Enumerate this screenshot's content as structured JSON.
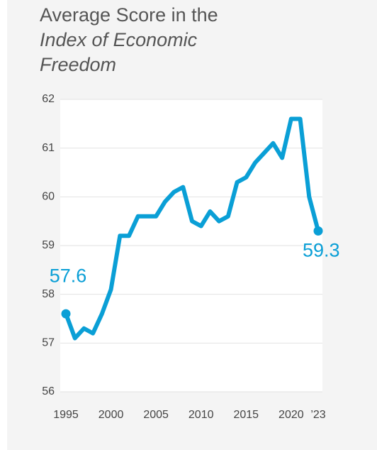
{
  "chart_data": {
    "type": "line",
    "title": "Average Score in the",
    "subtitle": "Index of Economic Freedom",
    "x": [
      1995,
      1996,
      1997,
      1998,
      1999,
      2000,
      2001,
      2002,
      2003,
      2004,
      2005,
      2006,
      2007,
      2008,
      2009,
      2010,
      2011,
      2012,
      2013,
      2014,
      2015,
      2016,
      2017,
      2018,
      2019,
      2020,
      2021,
      2022,
      2023
    ],
    "values": [
      57.6,
      57.1,
      57.3,
      57.2,
      57.6,
      58.1,
      59.2,
      59.2,
      59.6,
      59.6,
      59.6,
      59.9,
      60.1,
      60.2,
      59.5,
      59.4,
      59.7,
      59.5,
      59.6,
      60.3,
      60.4,
      60.7,
      60.9,
      61.1,
      60.8,
      61.6,
      61.6,
      60.0,
      59.3
    ],
    "color": "#0a9fd6",
    "xlim": [
      1995,
      2023
    ],
    "xticks": [
      1995,
      2000,
      2005,
      2010,
      2015,
      2020,
      {
        "value": 2023,
        "label": "’23"
      }
    ],
    "ylim": [
      56,
      62
    ],
    "yticks": [
      56,
      57,
      58,
      59,
      60,
      61,
      62
    ],
    "grid": true
  }
}
